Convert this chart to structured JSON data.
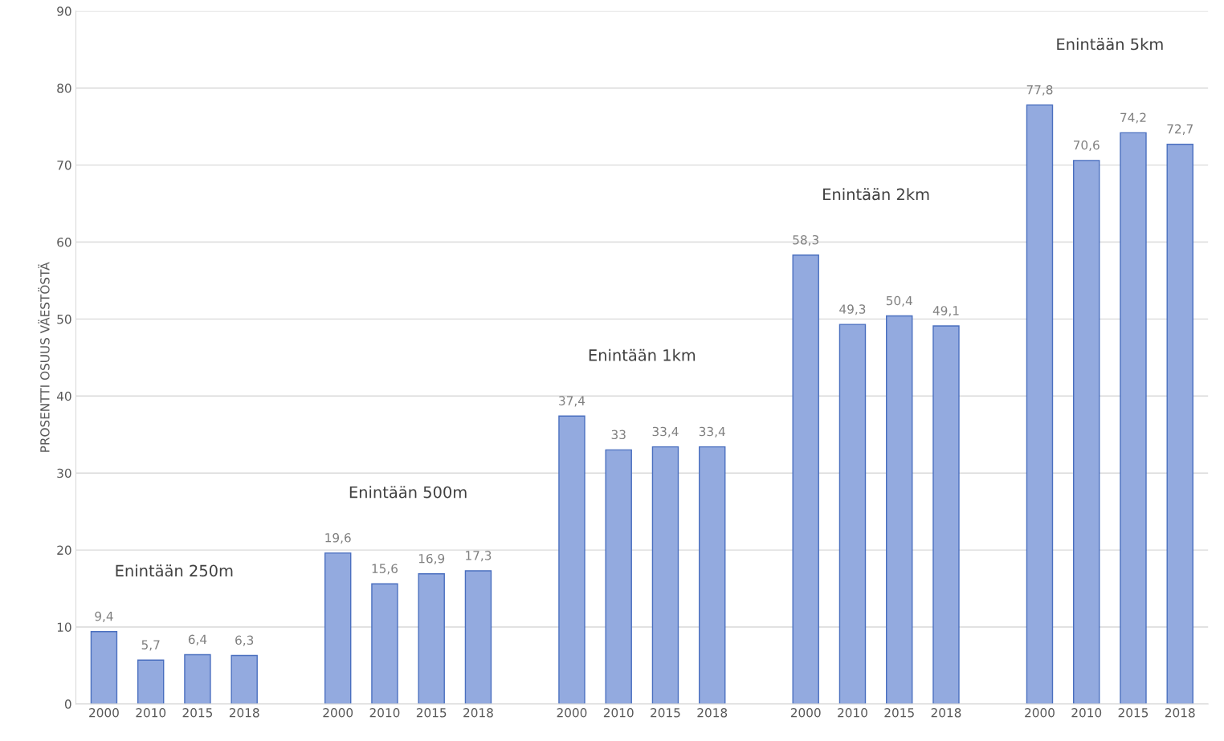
{
  "chart_data": {
    "type": "bar",
    "ylabel": "PROSENTTI OSUUS VÄESTÖSTÄ",
    "categories": [
      "2000",
      "2010",
      "2015",
      "2018",
      null,
      "2000",
      "2010",
      "2015",
      "2018",
      null,
      "2000",
      "2010",
      "2015",
      "2018",
      null,
      "2000",
      "2010",
      "2015",
      "2018",
      null,
      "2000",
      "2010",
      "2015",
      "2018"
    ],
    "values": [
      9.4,
      5.7,
      6.4,
      6.3,
      null,
      19.6,
      15.6,
      16.9,
      17.3,
      null,
      37.4,
      33,
      33.4,
      33.4,
      null,
      58.3,
      49.3,
      50.4,
      49.1,
      null,
      77.8,
      70.6,
      74.2,
      72.7
    ],
    "value_labels": [
      "9,4",
      "5,7",
      "6,4",
      "6,3",
      null,
      "19,6",
      "15,6",
      "16,9",
      "17,3",
      null,
      "37,4",
      "33",
      "33,4",
      "33,4",
      null,
      "58,3",
      "49,3",
      "50,4",
      "49,1",
      null,
      "77,8",
      "70,6",
      "74,2",
      "72,7"
    ],
    "color": "#93aadf",
    "annotations": [
      "Enintään 250m",
      "Enintään 500m",
      "Enintään 1km",
      "Enintään 2km",
      "Enintään 5km"
    ],
    "ylim": [
      0,
      90
    ],
    "yticks": [
      0,
      10,
      20,
      30,
      40,
      50,
      60,
      70,
      80,
      90
    ],
    "grid": "y"
  }
}
